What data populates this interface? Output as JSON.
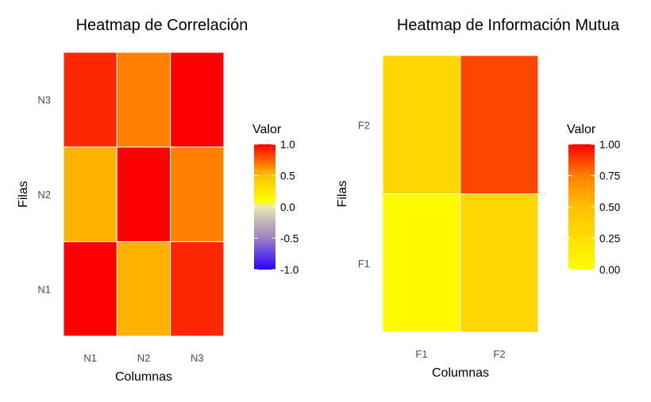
{
  "chart_data": [
    {
      "type": "heatmap",
      "title": "Heatmap de Correlación",
      "xlabel": "Columnas",
      "ylabel": "Filas",
      "x_categories": [
        "N1",
        "N2",
        "N3"
      ],
      "y_categories": [
        "N1",
        "N2",
        "N3"
      ],
      "cells": [
        {
          "x": "N1",
          "y": "N1",
          "value": 1.0
        },
        {
          "x": "N2",
          "y": "N1",
          "value": 0.3
        },
        {
          "x": "N3",
          "y": "N1",
          "value": 0.85
        },
        {
          "x": "N1",
          "y": "N2",
          "value": 0.3
        },
        {
          "x": "N2",
          "y": "N2",
          "value": 1.0
        },
        {
          "x": "N3",
          "y": "N2",
          "value": 0.5
        },
        {
          "x": "N1",
          "y": "N3",
          "value": 0.85
        },
        {
          "x": "N2",
          "y": "N3",
          "value": 0.5
        },
        {
          "x": "N3",
          "y": "N3",
          "value": 1.0
        }
      ],
      "legend": {
        "title": "Valor",
        "range": [
          -1.0,
          1.0
        ],
        "tick_labels": [
          "1.0",
          "0.5",
          "0.0",
          "-0.5",
          "-1.0"
        ],
        "tick_values": [
          1.0,
          0.5,
          0.0,
          -0.5,
          -1.0
        ],
        "colors": {
          "low": "#2a00ff",
          "mid": "#ffff00",
          "high": "#ff0000"
        },
        "placement": "right"
      },
      "grid": false
    },
    {
      "type": "heatmap",
      "title": "Heatmap de Información Mutua",
      "xlabel": "Columnas",
      "ylabel": "Filas",
      "x_categories": [
        "F1",
        "F2"
      ],
      "y_categories": [
        "F1",
        "F2"
      ],
      "cells": [
        {
          "x": "F1",
          "y": "F1",
          "value": 0.05
        },
        {
          "x": "F2",
          "y": "F1",
          "value": 0.33
        },
        {
          "x": "F1",
          "y": "F2",
          "value": 0.33
        },
        {
          "x": "F2",
          "y": "F2",
          "value": 0.82
        }
      ],
      "legend": {
        "title": "Valor",
        "range": [
          0.0,
          1.0
        ],
        "tick_labels": [
          "1.00",
          "0.75",
          "0.50",
          "0.25",
          "0.00"
        ],
        "tick_values": [
          1.0,
          0.75,
          0.5,
          0.25,
          0.0
        ],
        "colors": {
          "low": "#ffff00",
          "mid": "#ff9900",
          "high": "#ff0000"
        },
        "placement": "right"
      },
      "grid": false
    }
  ]
}
